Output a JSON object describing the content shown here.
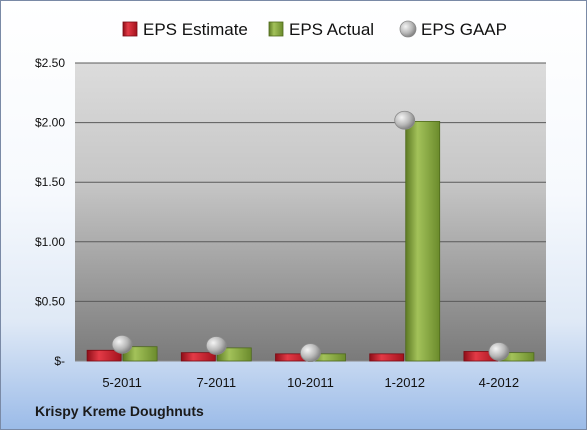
{
  "company_label": "Krispy Kreme Doughnuts",
  "chart_data": {
    "type": "bar",
    "categories": [
      "5-2011",
      "7-2011",
      "10-2011",
      "1-2012",
      "4-2012"
    ],
    "series": [
      {
        "name": "EPS Estimate",
        "type": "bar",
        "color": "#d8283a",
        "values": [
          0.09,
          0.07,
          0.06,
          0.06,
          0.08
        ]
      },
      {
        "name": "EPS Actual",
        "type": "bar",
        "color": "#8fb04a",
        "values": [
          0.12,
          0.11,
          0.06,
          2.01,
          0.07
        ]
      },
      {
        "name": "EPS GAAP",
        "type": "marker",
        "color": "#b0b0b0",
        "values": [
          0.14,
          0.13,
          0.07,
          2.02,
          0.08
        ]
      }
    ],
    "ylim": [
      0,
      2.5
    ],
    "yticks": [
      0,
      0.5,
      1.0,
      1.5,
      2.0,
      2.5
    ],
    "ytick_labels": [
      "$-",
      "$0.50",
      "$1.00",
      "$1.50",
      "$2.00",
      "$2.50"
    ],
    "grid": true,
    "legend_position": "top"
  }
}
